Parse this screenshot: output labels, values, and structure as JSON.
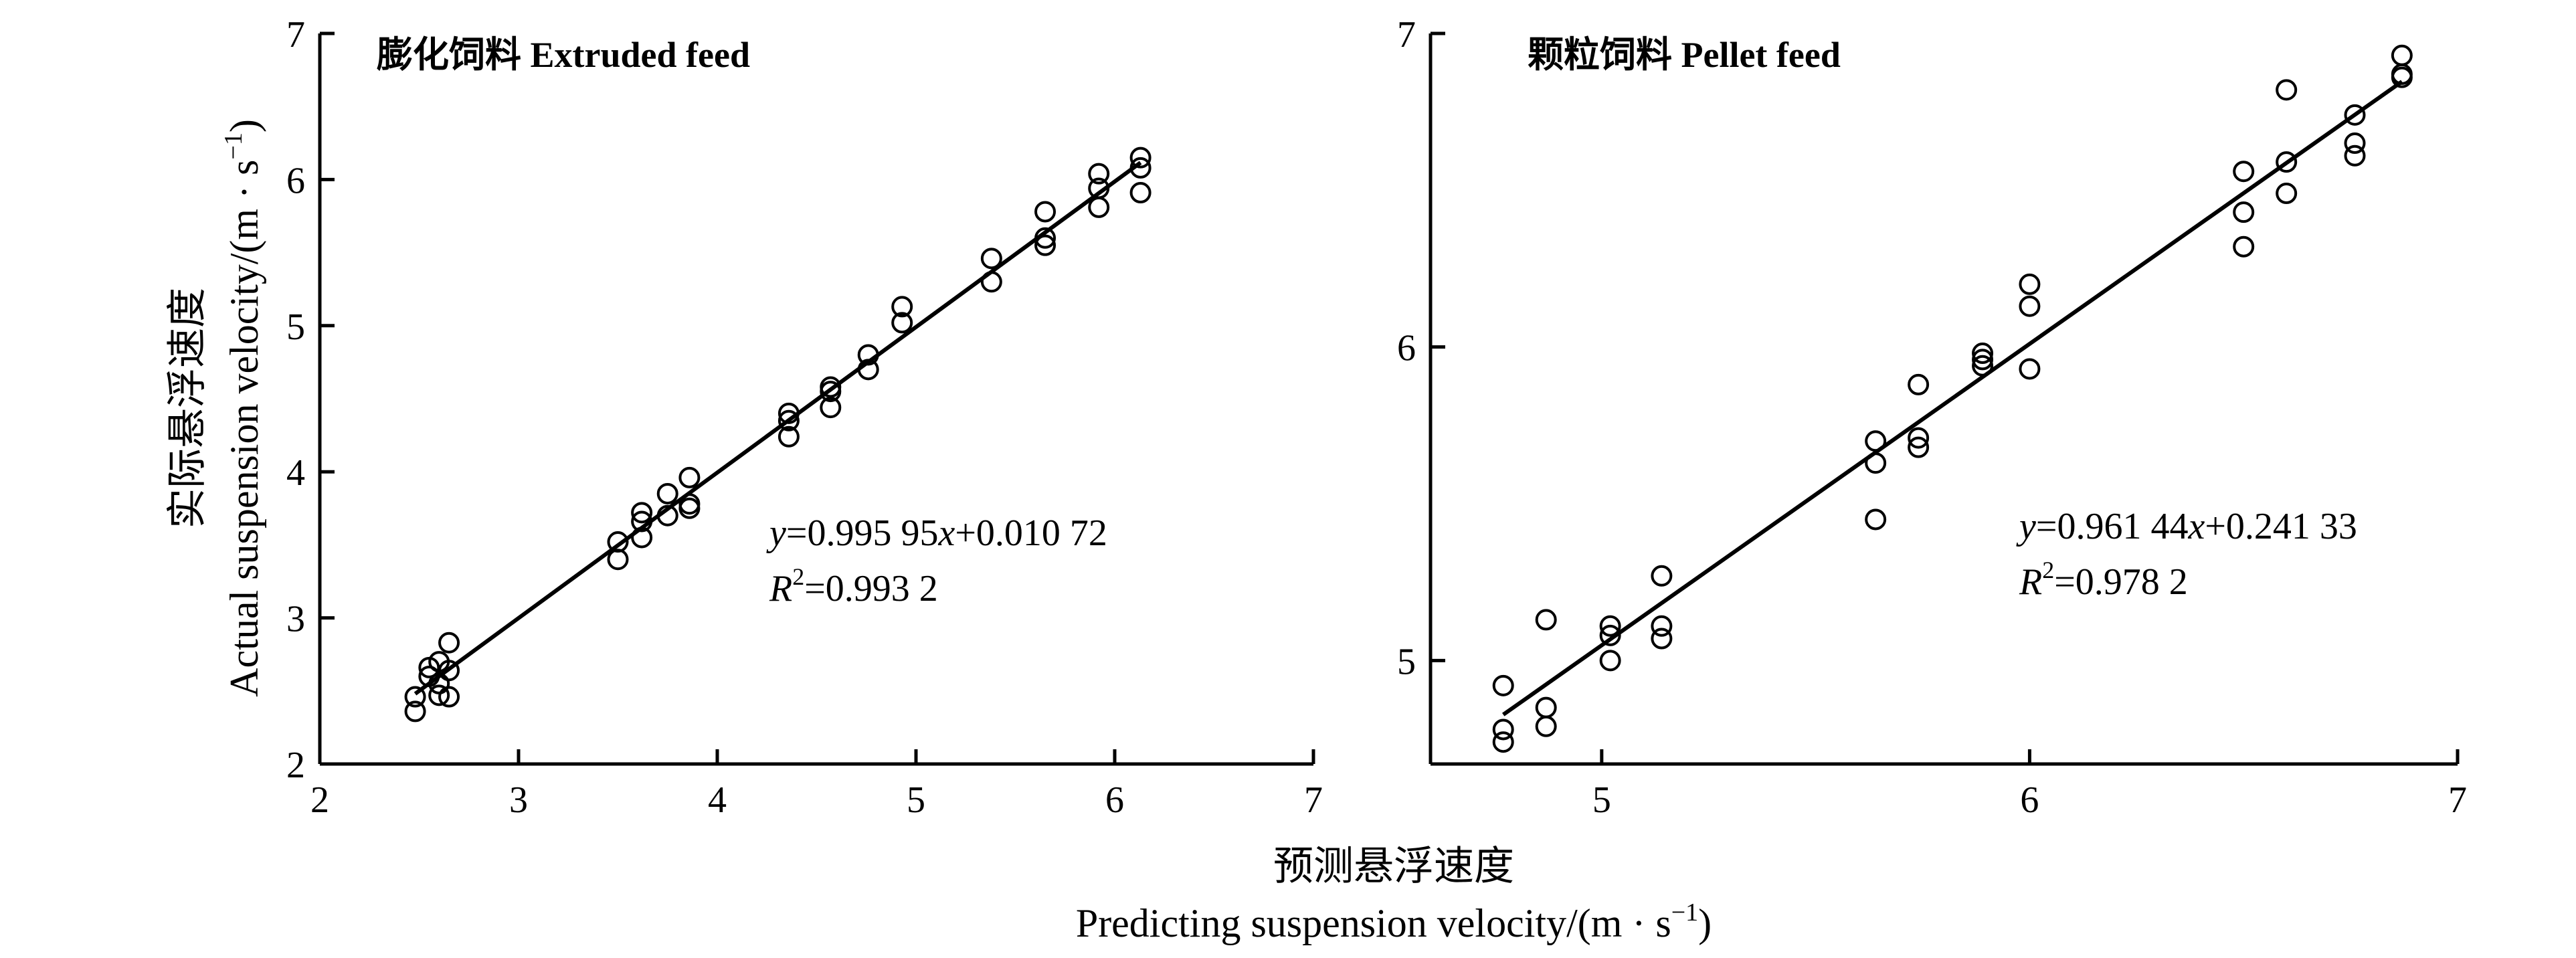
{
  "chart_data": [
    {
      "type": "scatter",
      "title": "膨化饲料 Extruded feed",
      "xlim": [
        2,
        7
      ],
      "ylim": [
        2,
        7
      ],
      "x_ticks": [
        "2",
        "3",
        "4",
        "5",
        "6",
        "7"
      ],
      "y_ticks": [
        "2",
        "3",
        "4",
        "5",
        "6",
        "7"
      ],
      "fit": {
        "slope": 0.99595,
        "intercept": 0.01072,
        "x_range": [
          2.48,
          6.13
        ]
      },
      "equation": {
        "lhs": "y",
        "eq": "=0.995 95",
        "x": "x",
        "rest": "+0.010 72"
      },
      "r2": {
        "r": "R",
        "sup": "2",
        "value": "=0.993 2"
      },
      "points": [
        {
          "x": 2.48,
          "y": 2.46
        },
        {
          "x": 2.48,
          "y": 2.36
        },
        {
          "x": 2.55,
          "y": 2.66
        },
        {
          "x": 2.55,
          "y": 2.6
        },
        {
          "x": 2.6,
          "y": 2.7
        },
        {
          "x": 2.6,
          "y": 2.55
        },
        {
          "x": 2.6,
          "y": 2.47
        },
        {
          "x": 2.65,
          "y": 2.83
        },
        {
          "x": 2.65,
          "y": 2.64
        },
        {
          "x": 2.65,
          "y": 2.46
        },
        {
          "x": 3.5,
          "y": 3.52
        },
        {
          "x": 3.5,
          "y": 3.4
        },
        {
          "x": 3.62,
          "y": 3.72
        },
        {
          "x": 3.62,
          "y": 3.66
        },
        {
          "x": 3.62,
          "y": 3.55
        },
        {
          "x": 3.75,
          "y": 3.85
        },
        {
          "x": 3.75,
          "y": 3.7
        },
        {
          "x": 3.86,
          "y": 3.96
        },
        {
          "x": 3.86,
          "y": 3.78
        },
        {
          "x": 3.86,
          "y": 3.75
        },
        {
          "x": 4.36,
          "y": 4.4
        },
        {
          "x": 4.36,
          "y": 4.35
        },
        {
          "x": 4.36,
          "y": 4.24
        },
        {
          "x": 4.57,
          "y": 4.58
        },
        {
          "x": 4.57,
          "y": 4.55
        },
        {
          "x": 4.57,
          "y": 4.44
        },
        {
          "x": 4.76,
          "y": 4.8
        },
        {
          "x": 4.76,
          "y": 4.7
        },
        {
          "x": 4.93,
          "y": 5.13
        },
        {
          "x": 4.93,
          "y": 5.02
        },
        {
          "x": 5.38,
          "y": 5.46
        },
        {
          "x": 5.38,
          "y": 5.3
        },
        {
          "x": 5.65,
          "y": 5.78
        },
        {
          "x": 5.65,
          "y": 5.6
        },
        {
          "x": 5.65,
          "y": 5.55
        },
        {
          "x": 5.92,
          "y": 6.04
        },
        {
          "x": 5.92,
          "y": 5.94
        },
        {
          "x": 5.92,
          "y": 5.81
        },
        {
          "x": 6.13,
          "y": 6.15
        },
        {
          "x": 6.13,
          "y": 6.08
        },
        {
          "x": 6.13,
          "y": 5.91
        }
      ]
    },
    {
      "type": "scatter",
      "title": "颗粒饲料 Pellet feed",
      "xlim": [
        4.6,
        7
      ],
      "ylim": [
        4.67,
        7
      ],
      "x_ticks": [
        "5",
        "6",
        "7"
      ],
      "y_ticks": [
        "5",
        "6",
        "7"
      ],
      "fit": {
        "slope": 0.96144,
        "intercept": 0.24133,
        "x_range": [
          4.77,
          6.87
        ]
      },
      "equation": {
        "lhs": "y",
        "eq": "=0.961 44",
        "x": "x",
        "rest": "+0.241 33"
      },
      "r2": {
        "r": "R",
        "sup": "2",
        "value": "=0.978 2"
      },
      "points": [
        {
          "x": 4.77,
          "y": 4.92
        },
        {
          "x": 4.77,
          "y": 4.78
        },
        {
          "x": 4.77,
          "y": 4.74
        },
        {
          "x": 4.87,
          "y": 5.13
        },
        {
          "x": 4.87,
          "y": 4.85
        },
        {
          "x": 4.87,
          "y": 4.79
        },
        {
          "x": 5.02,
          "y": 5.11
        },
        {
          "x": 5.02,
          "y": 5.08
        },
        {
          "x": 5.02,
          "y": 5.0
        },
        {
          "x": 5.14,
          "y": 5.27
        },
        {
          "x": 5.14,
          "y": 5.11
        },
        {
          "x": 5.14,
          "y": 5.07
        },
        {
          "x": 5.64,
          "y": 5.7
        },
        {
          "x": 5.64,
          "y": 5.63
        },
        {
          "x": 5.64,
          "y": 5.45
        },
        {
          "x": 5.74,
          "y": 5.88
        },
        {
          "x": 5.74,
          "y": 5.71
        },
        {
          "x": 5.74,
          "y": 5.68
        },
        {
          "x": 5.89,
          "y": 5.98
        },
        {
          "x": 5.89,
          "y": 5.96
        },
        {
          "x": 5.89,
          "y": 5.94
        },
        {
          "x": 6.0,
          "y": 6.2
        },
        {
          "x": 6.0,
          "y": 6.13
        },
        {
          "x": 6.0,
          "y": 5.93
        },
        {
          "x": 6.5,
          "y": 6.56
        },
        {
          "x": 6.5,
          "y": 6.43
        },
        {
          "x": 6.5,
          "y": 6.32
        },
        {
          "x": 6.6,
          "y": 6.82
        },
        {
          "x": 6.6,
          "y": 6.59
        },
        {
          "x": 6.6,
          "y": 6.49
        },
        {
          "x": 6.76,
          "y": 6.74
        },
        {
          "x": 6.76,
          "y": 6.65
        },
        {
          "x": 6.76,
          "y": 6.61
        },
        {
          "x": 6.87,
          "y": 6.93
        },
        {
          "x": 6.87,
          "y": 6.87
        },
        {
          "x": 6.87,
          "y": 6.86
        }
      ]
    }
  ],
  "axes": {
    "ylabel": "Actual suspension velocity/(m · s",
    "ylabel_sup": "−1",
    "ylabel_close": ")",
    "ylabel_cn": "实际悬浮速度",
    "xlabel_cn": "预测悬浮速度",
    "xlabel": "Predicting suspension velocity/(m · s",
    "xlabel_sup": "−1",
    "xlabel_close": ")"
  }
}
